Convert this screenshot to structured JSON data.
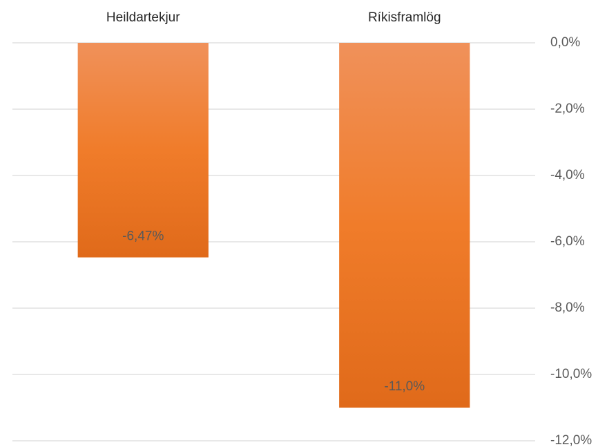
{
  "chart_data": {
    "type": "bar",
    "categories": [
      "Heildartekjur",
      "Ríkisframlög"
    ],
    "values": [
      -6.47,
      -11.0
    ],
    "value_labels": [
      "-6,47%",
      "-11,0%"
    ],
    "color": "#f07c2a",
    "ylim": [
      -12,
      0
    ],
    "yticks": [
      {
        "value": 0,
        "label": "0,0%"
      },
      {
        "value": -2,
        "label": "-2,0%"
      },
      {
        "value": -4,
        "label": "-4,0%"
      },
      {
        "value": -6,
        "label": "-6,0%"
      },
      {
        "value": -8,
        "label": "-8,0%"
      },
      {
        "value": -10,
        "label": "-10,0%"
      },
      {
        "value": -12,
        "label": "-12,0%"
      }
    ],
    "grid": true,
    "y_axis_side": "right",
    "x_labels_position": "top"
  }
}
